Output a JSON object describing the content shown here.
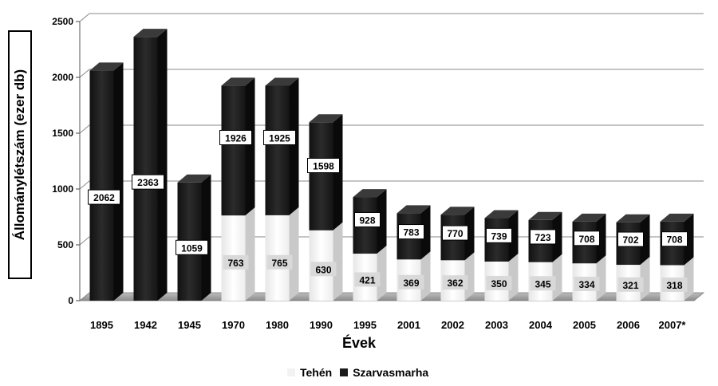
{
  "chart_data": {
    "type": "bar",
    "stacked": "overlapping",
    "ylabel": "Állománylétszám (ezer db)",
    "xlabel": "Évek",
    "ylim": [
      0,
      2500
    ],
    "yticks": [
      0,
      500,
      1000,
      1500,
      2000,
      2500
    ],
    "grid": true,
    "legend_position": "bottom",
    "categories": [
      "1895",
      "1942",
      "1945",
      "1970",
      "1980",
      "1990",
      "1995",
      "2001",
      "2002",
      "2003",
      "2004",
      "2005",
      "2006",
      "2007*"
    ],
    "series": [
      {
        "name": "Tehén",
        "color": "#f2f2f2",
        "values": [
          null,
          null,
          null,
          763,
          765,
          630,
          421,
          369,
          362,
          350,
          345,
          334,
          321,
          318
        ]
      },
      {
        "name": "Szarvasmarha",
        "color": "#1a1a1a",
        "values": [
          2062,
          2363,
          1059,
          1926,
          1925,
          1598,
          928,
          783,
          770,
          739,
          723,
          708,
          702,
          708
        ]
      }
    ]
  }
}
